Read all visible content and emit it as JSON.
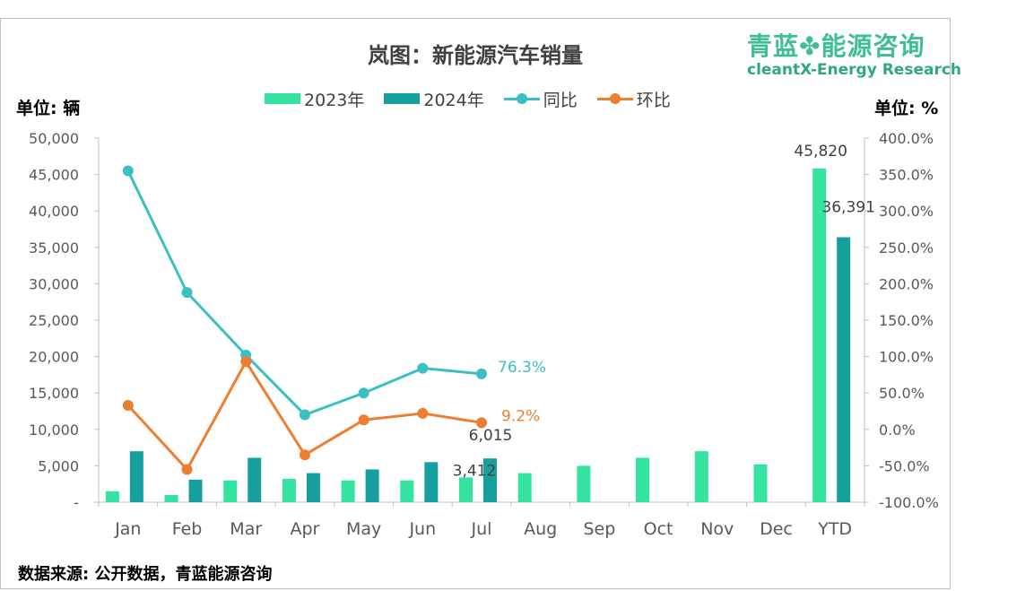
{
  "header": {
    "title": "岚图：新能源汽车销量",
    "brand_cn_left": "青蓝",
    "brand_cn_right": "能源咨询",
    "brand_en": "cleantX-Energy Research",
    "unit_left": "单位: 辆",
    "unit_right": "单位: %"
  },
  "footer": {
    "source": "数据来源: 公开数据，青蓝能源咨询"
  },
  "legend": {
    "s2023": "2023年",
    "s2024": "2024年",
    "yoy": "同比",
    "mom": "环比"
  },
  "colors": {
    "c2023": "#34e3a0",
    "c2024": "#16a09d",
    "yoy": "#3cbfc3",
    "mom": "#ed7d31",
    "axis": "#bfbfbf"
  },
  "chart_data": {
    "type": "bar",
    "categories": [
      "Jan",
      "Feb",
      "Mar",
      "Apr",
      "May",
      "Jun",
      "Jul",
      "Aug",
      "Sep",
      "Oct",
      "Nov",
      "Dec",
      "YTD"
    ],
    "series": [
      {
        "name": "2023年",
        "type": "bar",
        "axis": "left",
        "values": [
          1500,
          1000,
          3000,
          3200,
          3000,
          3000,
          3412,
          4000,
          5000,
          6100,
          7000,
          5200,
          45820
        ]
      },
      {
        "name": "2024年",
        "type": "bar",
        "axis": "left",
        "values": [
          7000,
          3100,
          6100,
          4000,
          4500,
          5500,
          6015,
          null,
          null,
          null,
          null,
          null,
          36391
        ]
      },
      {
        "name": "同比",
        "type": "line",
        "axis": "right",
        "values": [
          355,
          188,
          102,
          20,
          50,
          84,
          76.3,
          null,
          null,
          null,
          null,
          null,
          null
        ]
      },
      {
        "name": "环比",
        "type": "line",
        "axis": "right",
        "values": [
          33,
          -55,
          93,
          -35,
          13,
          22,
          9.2,
          null,
          null,
          null,
          null,
          null,
          null
        ]
      }
    ],
    "left_axis": {
      "min": 0,
      "max": 50000,
      "step": 5000,
      "ticks": [
        "-",
        "5,000",
        "10,000",
        "15,000",
        "20,000",
        "25,000",
        "30,000",
        "35,000",
        "40,000",
        "45,000",
        "50,000"
      ]
    },
    "right_axis": {
      "min": -100,
      "max": 400,
      "step": 50,
      "ticks": [
        "-100.0%",
        "-50.0%",
        "0.0%",
        "50.0%",
        "100.0%",
        "150.0%",
        "200.0%",
        "250.0%",
        "300.0%",
        "350.0%",
        "400.0%"
      ]
    },
    "data_labels": {
      "jul_2023": "3,412",
      "jul_2024": "6,015",
      "ytd_2023": "45,820",
      "ytd_2024": "36,391",
      "jul_yoy": "76.3%",
      "jul_mom": "9.2%"
    },
    "grid": false,
    "legend_position": "top"
  }
}
